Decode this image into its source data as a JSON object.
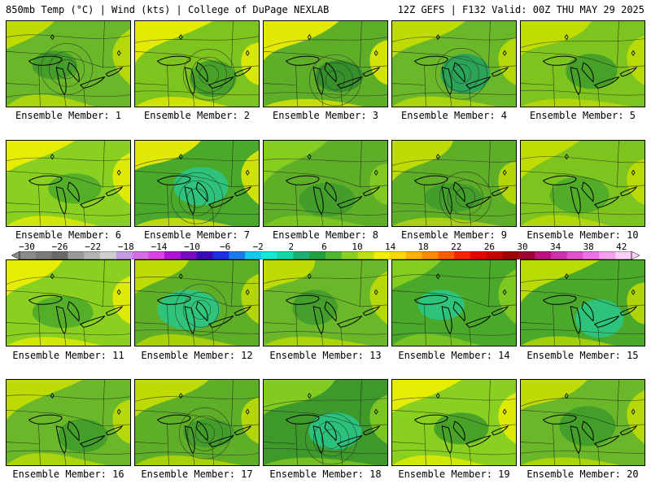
{
  "header": {
    "left": "850mb Temp (°C) | Wind (kts) | College of DuPage NEXLAB",
    "right": "12Z GEFS | F132 Valid: 00Z THU MAY 29 2025"
  },
  "colorbar": {
    "labels": [
      "−30",
      "−26",
      "−22",
      "−18",
      "−14",
      "−10",
      "−6",
      "−2",
      "2",
      "6",
      "10",
      "14",
      "18",
      "22",
      "26",
      "30",
      "34",
      "38",
      "42"
    ],
    "colors": [
      "#8a8a8a",
      "#7a7a7a",
      "#6a6a6a",
      "#9a9a9a",
      "#b4b4b4",
      "#cfcfcf",
      "#c59ae6",
      "#d56ee6",
      "#e040e8",
      "#b010d8",
      "#7a0ac8",
      "#3a0ab8",
      "#1a2ee6",
      "#1a7af0",
      "#10c8f0",
      "#10e8d8",
      "#10d8a8",
      "#1ab070",
      "#20a040",
      "#50b830",
      "#8ad020",
      "#c0e010",
      "#f0f000",
      "#ffd800",
      "#ffb000",
      "#ff8a00",
      "#ff5a00",
      "#ff2000",
      "#e80000",
      "#c80000",
      "#a00000",
      "#a00030",
      "#c01080",
      "#d030b0",
      "#e050d0",
      "#f070e8",
      "#f8a0f0",
      "#ffd0f8"
    ]
  },
  "members": [
    {
      "label": "Ensemble Member: 1",
      "base": "#6ab82a",
      "blob": "#c8e000",
      "blob2": "#3d9a2a",
      "style": "ring"
    },
    {
      "label": "Ensemble Member: 2",
      "base": "#7ec41e",
      "blob": "#f0f000",
      "blob2": "#3d9a2a",
      "style": "ring"
    },
    {
      "label": "Ensemble Member: 3",
      "base": "#5fae28",
      "blob": "#f0f000",
      "blob2": "#2e8a2a",
      "style": "ring"
    },
    {
      "label": "Ensemble Member: 4",
      "base": "#6ab82a",
      "blob": "#c8e000",
      "blob2": "#20a060",
      "style": "ring"
    },
    {
      "label": "Ensemble Member: 5",
      "base": "#7ec41e",
      "blob": "#c8e000",
      "blob2": "#3d9a2a",
      "style": "flat"
    },
    {
      "label": "Ensemble Member: 6",
      "base": "#8ad020",
      "blob": "#f0f000",
      "blob2": "#4aa82a",
      "style": "flat"
    },
    {
      "label": "Ensemble Member: 7",
      "base": "#4aa82a",
      "blob": "#f0f000",
      "blob2": "#28c88a",
      "style": "ring"
    },
    {
      "label": "Ensemble Member: 8",
      "base": "#5fae28",
      "blob": "#8ad020",
      "blob2": "#3d9a2a",
      "style": "flat"
    },
    {
      "label": "Ensemble Member: 9",
      "base": "#5fae28",
      "blob": "#c8e000",
      "blob2": "#3d9a2a",
      "style": "ring"
    },
    {
      "label": "Ensemble Member: 10",
      "base": "#7ec41e",
      "blob": "#c8e000",
      "blob2": "#4aa82a",
      "style": "flat"
    },
    {
      "label": "Ensemble Member: 11",
      "base": "#8ad020",
      "blob": "#f0f000",
      "blob2": "#4aa82a",
      "style": "flat"
    },
    {
      "label": "Ensemble Member: 12",
      "base": "#5fae28",
      "blob": "#c8e000",
      "blob2": "#28c88a",
      "style": "ring"
    },
    {
      "label": "Ensemble Member: 13",
      "base": "#6ab82a",
      "blob": "#c8e000",
      "blob2": "#3d9a2a",
      "style": "flat"
    },
    {
      "label": "Ensemble Member: 14",
      "base": "#4aa82a",
      "blob": "#8ad020",
      "blob2": "#28c88a",
      "style": "flat"
    },
    {
      "label": "Ensemble Member: 15",
      "base": "#4aa82a",
      "blob": "#c8e000",
      "blob2": "#28c88a",
      "style": "flat"
    },
    {
      "label": "Ensemble Member: 16",
      "base": "#6ab82a",
      "blob": "#c8e000",
      "blob2": "#3d9a2a",
      "style": "flat"
    },
    {
      "label": "Ensemble Member: 17",
      "base": "#5fae28",
      "blob": "#c8e000",
      "blob2": "#3d9a2a",
      "style": "ring"
    },
    {
      "label": "Ensemble Member: 18",
      "base": "#3d9a2a",
      "blob": "#8ad020",
      "blob2": "#28c88a",
      "style": "ring"
    },
    {
      "label": "Ensemble Member: 19",
      "base": "#8ad020",
      "blob": "#f0f000",
      "blob2": "#3d9a2a",
      "style": "flat"
    },
    {
      "label": "Ensemble Member: 20",
      "base": "#6ab82a",
      "blob": "#c8e000",
      "blob2": "#3d9a2a",
      "style": "flat"
    }
  ]
}
